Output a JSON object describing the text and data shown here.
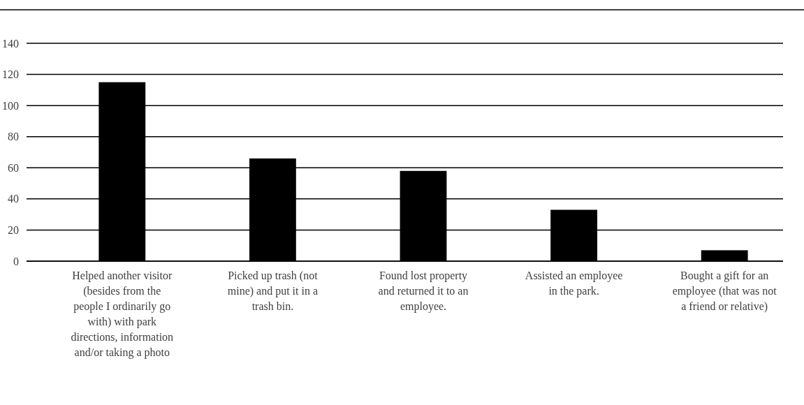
{
  "chart_data": {
    "type": "bar",
    "categories": [
      "Helped another visitor (besides from the people I ordinarily go with) with park directions, information and/or taking a photo",
      "Picked up trash (not mine) and put it in a trash bin.",
      "Found lost property and returned it to an employee.",
      "Assisted an employee in the park.",
      "Bought a gift for an employee (that was not a friend or relative)"
    ],
    "values": [
      115,
      66,
      58,
      33,
      7
    ],
    "color": "#000000",
    "ylim": [
      0,
      140
    ],
    "yticks": [
      0,
      20,
      40,
      60,
      80,
      100,
      120,
      140
    ],
    "grid": "y"
  }
}
